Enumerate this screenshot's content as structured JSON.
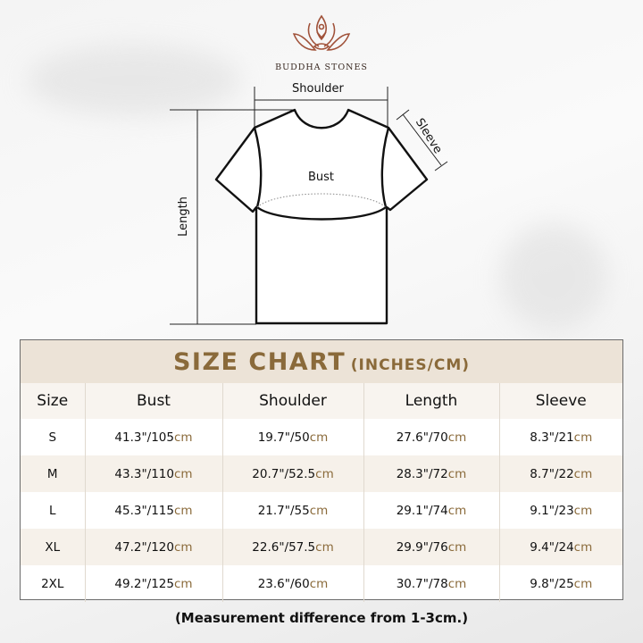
{
  "brand": {
    "name": "BUDDHA STONES",
    "logo": "lotus-meditation-logo",
    "color": "#a0523a"
  },
  "diagram": {
    "labels": {
      "shoulder": "Shoulder",
      "sleeve": "Sleeve",
      "bust": "Bust",
      "length": "Length"
    }
  },
  "size_chart": {
    "title": "SIZE CHART",
    "units": "(INCHES/CM)",
    "accent": "#8a6a3a",
    "headers": [
      "Size",
      "Bust",
      "Shoulder",
      "Length",
      "Sleeve"
    ],
    "rows": [
      {
        "size": "S",
        "bust": [
          "41.3\"/105",
          "cm"
        ],
        "shoulder": [
          "19.7\"/50",
          "cm"
        ],
        "length": [
          "27.6\"/70",
          "cm"
        ],
        "sleeve": [
          "8.3\"/21",
          "cm"
        ]
      },
      {
        "size": "M",
        "bust": [
          "43.3\"/110",
          "cm"
        ],
        "shoulder": [
          "20.7\"/52.5",
          "cm"
        ],
        "length": [
          "28.3\"/72",
          "cm"
        ],
        "sleeve": [
          "8.7\"/22",
          "cm"
        ]
      },
      {
        "size": "L",
        "bust": [
          "45.3\"/115",
          "cm"
        ],
        "shoulder": [
          "21.7\"/55",
          "cm"
        ],
        "length": [
          "29.1\"/74",
          "cm"
        ],
        "sleeve": [
          "9.1\"/23",
          "cm"
        ]
      },
      {
        "size": "XL",
        "bust": [
          "47.2\"/120",
          "cm"
        ],
        "shoulder": [
          "22.6\"/57.5",
          "cm"
        ],
        "length": [
          "29.9\"/76",
          "cm"
        ],
        "sleeve": [
          "9.4\"/24",
          "cm"
        ]
      },
      {
        "size": "2XL",
        "bust": [
          "49.2\"/125",
          "cm"
        ],
        "shoulder": [
          "23.6\"/60",
          "cm"
        ],
        "length": [
          "30.7\"/78",
          "cm"
        ],
        "sleeve": [
          "9.8\"/25",
          "cm"
        ]
      }
    ]
  },
  "note": "(Measurement difference from 1-3cm.)"
}
